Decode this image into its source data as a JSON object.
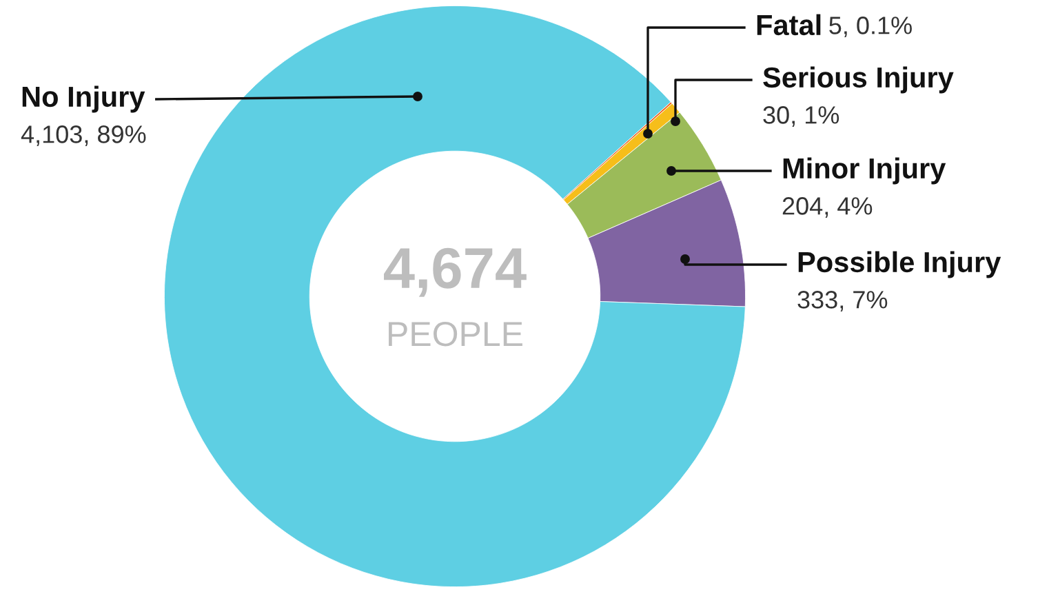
{
  "chart_data": {
    "type": "donut",
    "categories": [
      "No Injury",
      "Fatal",
      "Serious Injury",
      "Minor Injury",
      "Possible Injury"
    ],
    "values": [
      4103,
      5,
      30,
      204,
      333
    ],
    "colors": [
      "#5ecfe3",
      "#f26522",
      "#f6be1a",
      "#9bbb59",
      "#8064a2"
    ],
    "value_labels": [
      "4,103, 89%",
      "5, 0.1%",
      "30, 1%",
      "204, 4%",
      "333, 7%"
    ],
    "annotations": [
      "4,674",
      "PEOPLE"
    ]
  }
}
